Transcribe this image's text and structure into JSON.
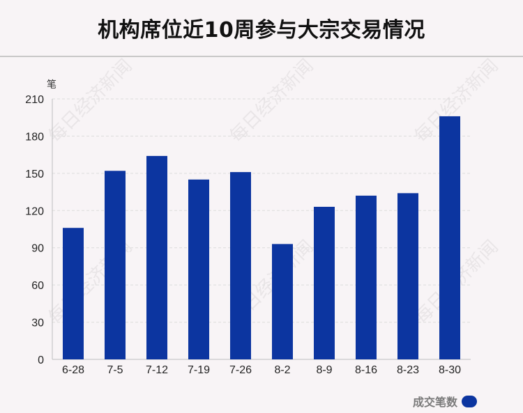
{
  "title": "机构席位近10周参与大宗交易情况",
  "unit_label": "笔",
  "legend_label": "成交笔数",
  "watermark_text": "每日经济新闻",
  "colors": {
    "bar": "#0c35a0",
    "grid": "#dcdcdc",
    "axis": "#bdbdbd",
    "text": "#222222"
  },
  "chart_data": {
    "type": "bar",
    "title": "机构席位近10周参与大宗交易情况",
    "ylabel": "笔",
    "xlabel": "",
    "categories": [
      "6-28",
      "7-5",
      "7-12",
      "7-19",
      "7-26",
      "8-2",
      "8-9",
      "8-16",
      "8-23",
      "8-30"
    ],
    "series": [
      {
        "name": "成交笔数",
        "values": [
          106,
          152,
          164,
          145,
          151,
          93,
          123,
          132,
          134,
          196
        ]
      }
    ],
    "ylim": [
      0,
      210
    ],
    "yticks": [
      0,
      30,
      60,
      90,
      120,
      150,
      180,
      210
    ],
    "grid": true,
    "legend_position": "bottom-right"
  }
}
